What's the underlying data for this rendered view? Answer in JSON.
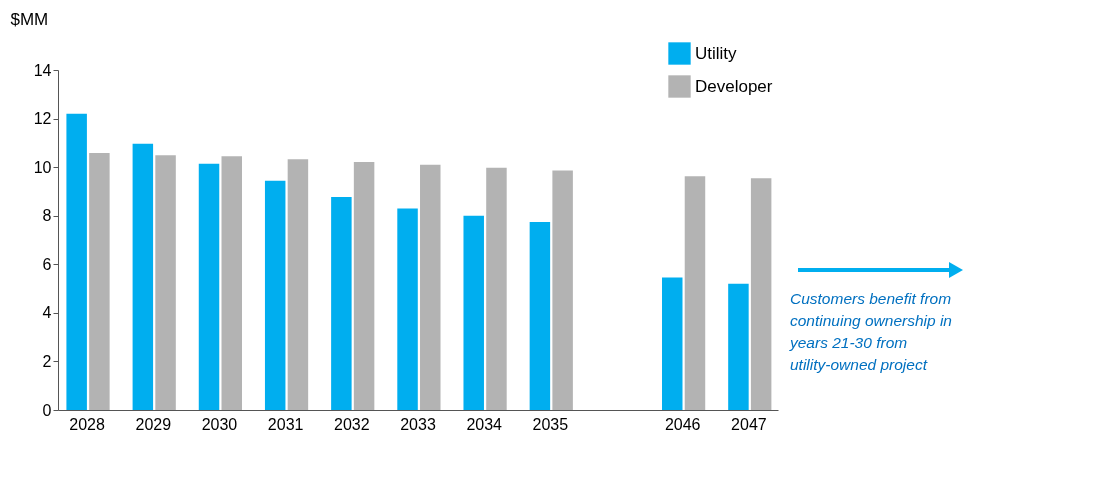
{
  "chart_data": {
    "type": "bar",
    "ylabel": "$MM",
    "categories": [
      "2028",
      "2029",
      "2030",
      "2031",
      "2032",
      "2033",
      "2034",
      "2035",
      null,
      "2046",
      "2047"
    ],
    "series": [
      {
        "name": "Utility",
        "color": "#00aeef",
        "values": [
          12.2,
          10.96,
          10.14,
          9.44,
          8.77,
          8.3,
          8.0,
          7.74,
          null,
          5.46,
          5.2
        ]
      },
      {
        "name": "Developer",
        "color": "#b3b3b3",
        "values": [
          10.58,
          10.49,
          10.45,
          10.33,
          10.21,
          10.1,
          9.98,
          9.86,
          null,
          9.62,
          9.54
        ]
      }
    ],
    "ylim": [
      0,
      14
    ],
    "yticks": [
      0,
      2,
      4,
      6,
      8,
      10,
      12,
      14
    ],
    "grid": false,
    "legend": "top right",
    "annotations": [
      "Customers benefit from continuing ownership in years 21-30 from utility-owned project"
    ]
  }
}
